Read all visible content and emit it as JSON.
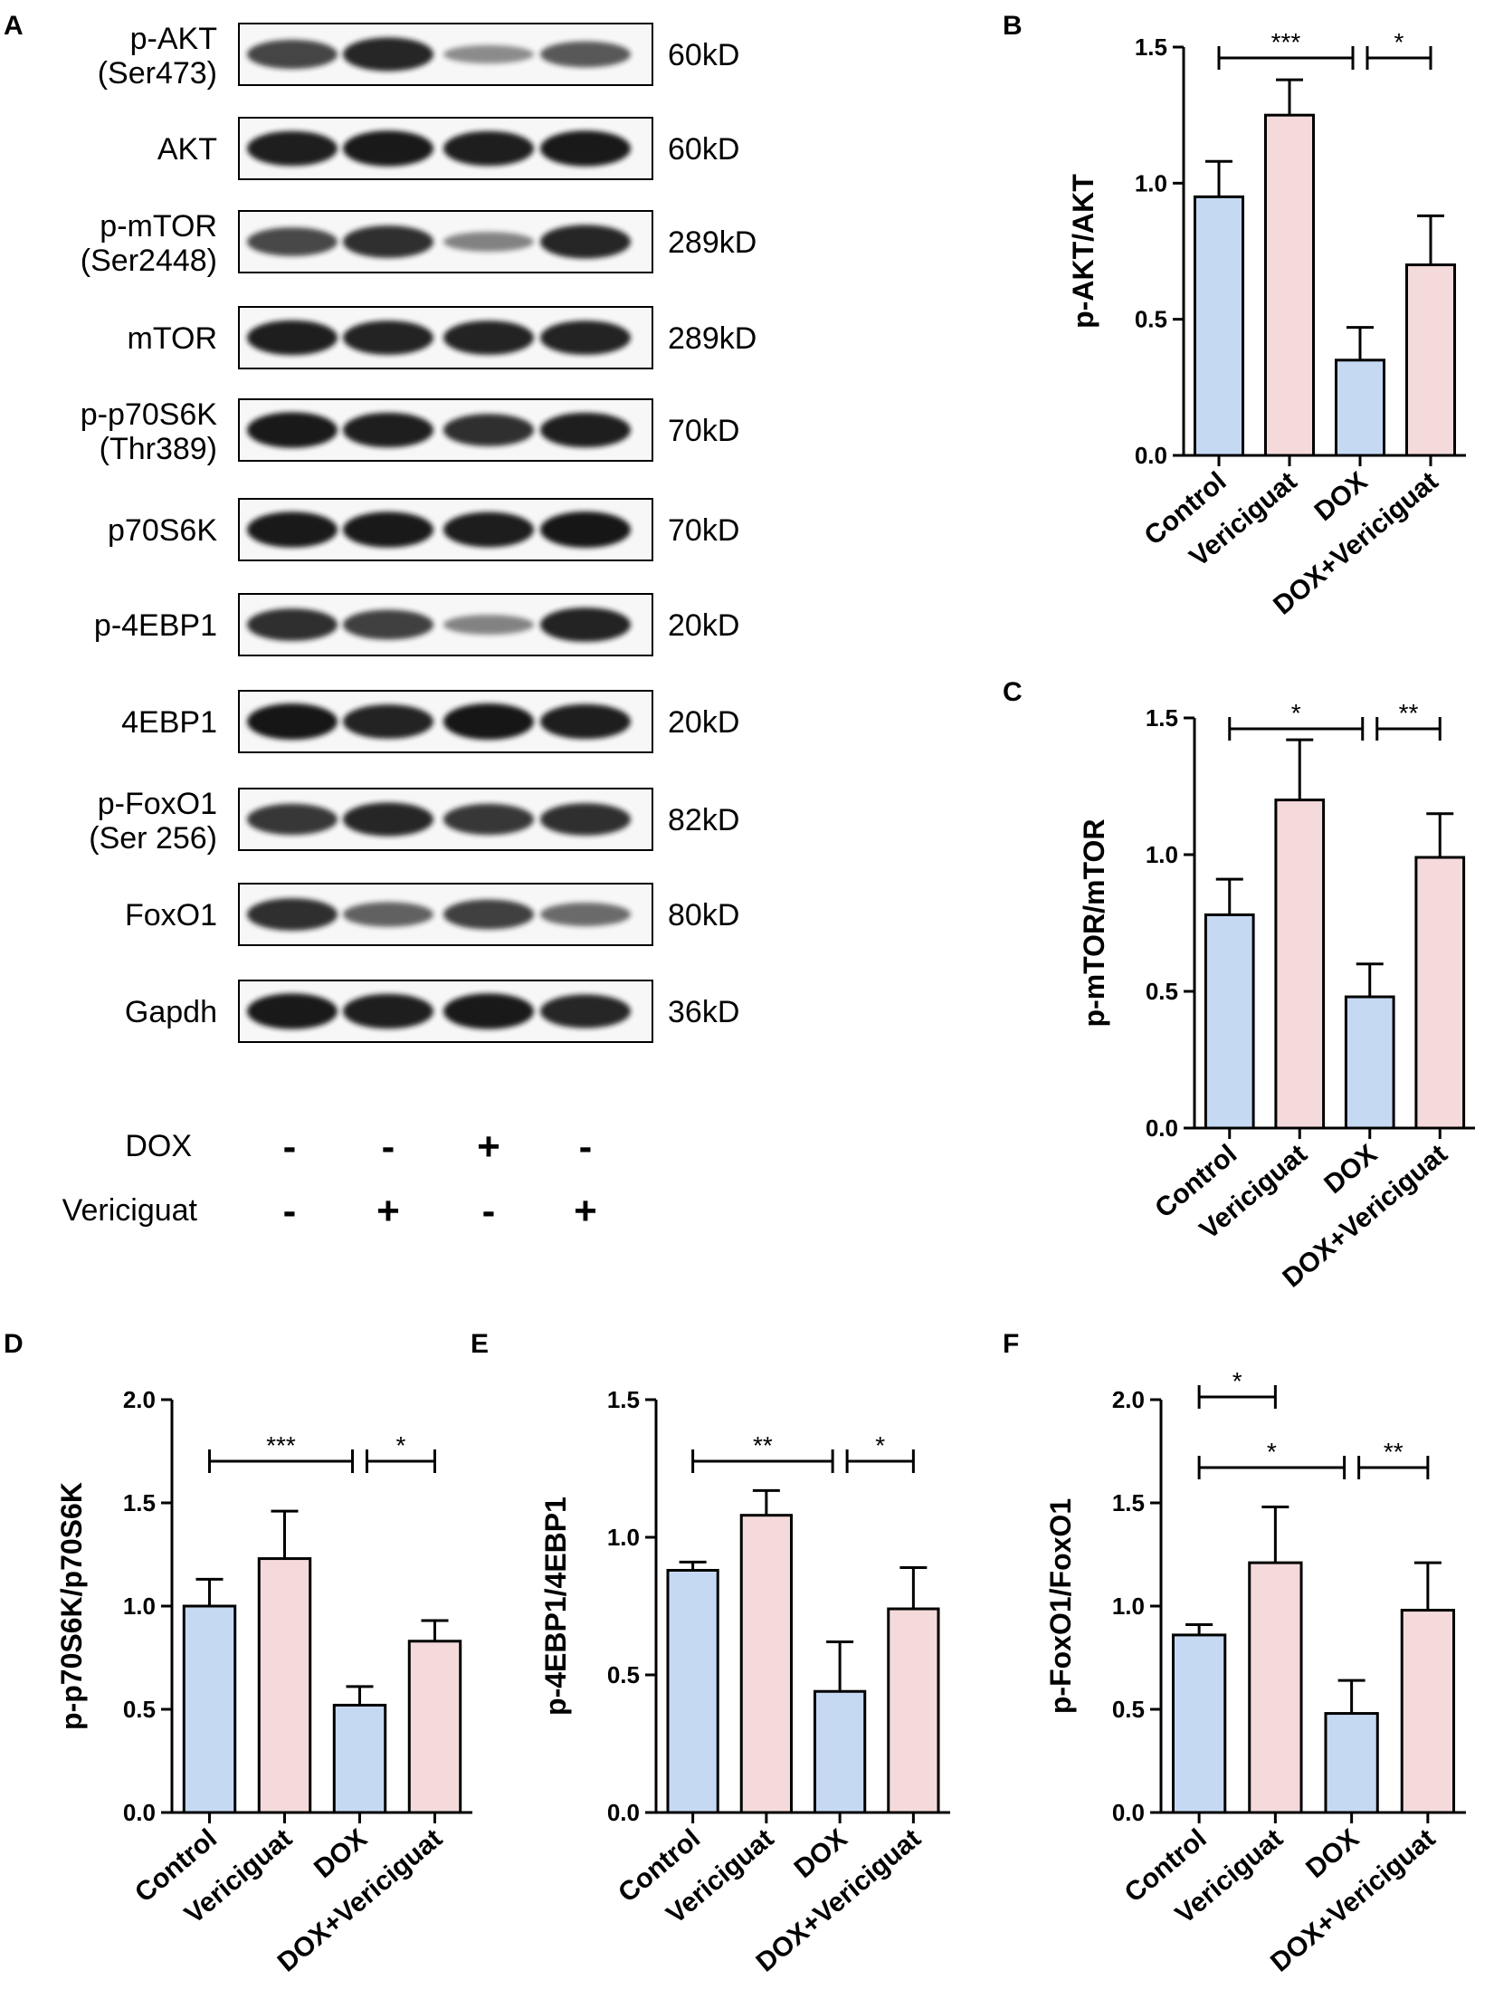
{
  "panels": {
    "A": "A",
    "B": "B",
    "C": "C",
    "D": "D",
    "E": "E",
    "F": "F"
  },
  "blot": {
    "rows": [
      {
        "label": "p-AKT\n(Ser473)",
        "size": "60kD",
        "intensity": [
          0.72,
          0.9,
          0.3,
          0.6
        ]
      },
      {
        "label": "AKT",
        "size": "60kD",
        "intensity": [
          0.95,
          0.98,
          0.95,
          0.98
        ]
      },
      {
        "label": "p-mTOR\n(Ser2448)",
        "size": "289kD",
        "intensity": [
          0.7,
          0.85,
          0.35,
          0.9
        ]
      },
      {
        "label": "mTOR",
        "size": "289kD",
        "intensity": [
          0.95,
          0.92,
          0.92,
          0.92
        ]
      },
      {
        "label": "p-p70S6K\n(Thr389)",
        "size": "70kD",
        "intensity": [
          0.98,
          0.95,
          0.85,
          0.95
        ]
      },
      {
        "label": "p70S6K",
        "size": "70kD",
        "intensity": [
          0.98,
          0.98,
          0.96,
          1.0
        ]
      },
      {
        "label": "p-4EBP1",
        "size": "20kD",
        "intensity": [
          0.85,
          0.75,
          0.35,
          0.92
        ]
      },
      {
        "label": "4EBP1",
        "size": "20kD",
        "intensity": [
          1.0,
          0.92,
          1.0,
          0.95
        ]
      },
      {
        "label": "p-FoxO1\n(Ser 256)",
        "size": "82kD",
        "intensity": [
          0.8,
          0.9,
          0.8,
          0.85
        ]
      },
      {
        "label": "FoxO1",
        "size": "80kD",
        "intensity": [
          0.85,
          0.55,
          0.75,
          0.5
        ]
      },
      {
        "label": "Gapdh",
        "size": "36kD",
        "intensity": [
          0.98,
          0.95,
          0.98,
          0.9
        ]
      }
    ],
    "treatments": [
      {
        "label": "DOX",
        "signs": [
          "-",
          "-",
          "+",
          "-"
        ]
      },
      {
        "label": "Vericiguat",
        "signs": [
          "-",
          "+",
          "-",
          "+"
        ]
      }
    ]
  },
  "chart_data": [
    {
      "panel": "B",
      "type": "bar",
      "ylabel": "p-AKT/AKT",
      "categories": [
        "Control",
        "Vericiguat",
        "DOX",
        "DOX+Vericiguat"
      ],
      "values": [
        0.95,
        1.25,
        0.35,
        0.7
      ],
      "errors": [
        0.13,
        0.13,
        0.12,
        0.18
      ],
      "ylim": [
        0.0,
        1.5
      ],
      "ticks": [
        "0.0",
        "0.5",
        "1.0",
        "1.5"
      ],
      "significance": [
        {
          "from": 0,
          "to": 2,
          "label": "***"
        },
        {
          "from": 2,
          "to": 3,
          "label": "*"
        }
      ]
    },
    {
      "panel": "C",
      "type": "bar",
      "ylabel": "p-mTOR/mTOR",
      "categories": [
        "Control",
        "Vericiguat",
        "DOX",
        "DOX+Vericiguat"
      ],
      "values": [
        0.78,
        1.2,
        0.48,
        0.99
      ],
      "errors": [
        0.13,
        0.22,
        0.12,
        0.16
      ],
      "ylim": [
        0.0,
        1.5
      ],
      "ticks": [
        "0.0",
        "0.5",
        "1.0",
        "1.5"
      ],
      "significance": [
        {
          "from": 0,
          "to": 2,
          "label": "*"
        },
        {
          "from": 2,
          "to": 3,
          "label": "**"
        }
      ]
    },
    {
      "panel": "D",
      "type": "bar",
      "ylabel": "p-p70S6K/p70S6K",
      "categories": [
        "Control",
        "Vericiguat",
        "DOX",
        "DOX+Vericiguat"
      ],
      "values": [
        1.0,
        1.23,
        0.52,
        0.83
      ],
      "errors": [
        0.13,
        0.23,
        0.09,
        0.1
      ],
      "ylim": [
        0.0,
        2.0
      ],
      "ticks": [
        "0.0",
        "0.5",
        "1.0",
        "1.5",
        "2.0"
      ],
      "significance": [
        {
          "from": 0,
          "to": 2,
          "label": "***"
        },
        {
          "from": 2,
          "to": 3,
          "label": "*"
        }
      ]
    },
    {
      "panel": "E",
      "type": "bar",
      "ylabel": "p-4EBP1/4EBP1",
      "categories": [
        "Control",
        "Vericiguat",
        "DOX",
        "DOX+Vericiguat"
      ],
      "values": [
        0.88,
        1.08,
        0.44,
        0.74
      ],
      "errors": [
        0.03,
        0.09,
        0.18,
        0.15
      ],
      "ylim": [
        0.0,
        1.5
      ],
      "ticks": [
        "0.0",
        "0.5",
        "1.0",
        "1.5"
      ],
      "significance": [
        {
          "from": 0,
          "to": 2,
          "label": "**"
        },
        {
          "from": 2,
          "to": 3,
          "label": "*"
        }
      ]
    },
    {
      "panel": "F",
      "type": "bar",
      "ylabel": "p-FoxO1/FoxO1",
      "categories": [
        "Control",
        "Vericiguat",
        "DOX",
        "DOX+Vericiguat"
      ],
      "values": [
        0.86,
        1.21,
        0.48,
        0.98
      ],
      "errors": [
        0.05,
        0.27,
        0.16,
        0.23
      ],
      "ylim": [
        0.0,
        2.0
      ],
      "ticks": [
        "0.0",
        "0.5",
        "1.0",
        "1.5",
        "2.0"
      ],
      "significance": [
        {
          "from": 0,
          "to": 1,
          "label": "*"
        },
        {
          "from": 0,
          "to": 2,
          "label": "*"
        },
        {
          "from": 2,
          "to": 3,
          "label": "**"
        }
      ]
    }
  ],
  "colors": {
    "blue_bar": "#c6d9f3",
    "pink_bar": "#f4dada",
    "ink": "#000000",
    "band": "#141414"
  }
}
